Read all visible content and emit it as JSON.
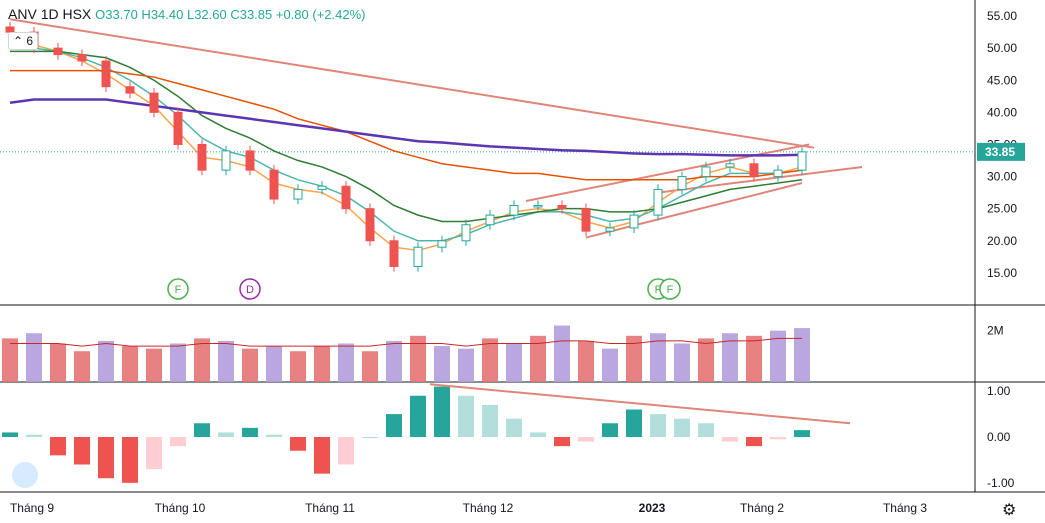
{
  "header": {
    "symbol": "ANV",
    "interval": "1D",
    "exchange": "HSX",
    "ohlc_text": "O33.70 H34.40 L32.60 C33.85 +0.80 (+2.42%)"
  },
  "indicator_toggle": "6",
  "icons": {
    "logo": "tradingview-logo-icon",
    "settings": "gear-icon",
    "collapse": "chevron-up-icon"
  },
  "colors": {
    "up": "#26a69a",
    "down": "#ef5350",
    "ma_fast": "#f6a54b",
    "ma_mid": "#4db6ac",
    "ma_slow": "#2e7d32",
    "ma_orange": "#e65100",
    "ma_long": "#5e35b1",
    "trendline": "#e0857a",
    "vol_up": "#b39ddb",
    "vol_down": "#e57373",
    "vol_ma": "#c62828",
    "macd_pos": "#26a69a",
    "macd_pos_light": "#b2dfdb",
    "macd_neg": "#ef5350",
    "macd_neg_light": "#ffcdd2",
    "price_label": "#26a69a"
  },
  "chart_data": [
    {
      "type": "candlestick",
      "title": "",
      "x_labels": [
        "Tháng 9",
        "Tháng 10",
        "Tháng 11",
        "Tháng 12",
        "2023",
        "Tháng 2",
        "Tháng 3"
      ],
      "y_ticks": [
        "55.00",
        "50.00",
        "45.00",
        "40.00",
        "35.00",
        "30.00",
        "25.00",
        "20.00",
        "15.00"
      ],
      "ylim": [
        10,
        57.5
      ],
      "last_price": "33.85",
      "weekly_closes": [
        52.5,
        50,
        49,
        48,
        44,
        43,
        40,
        35,
        31,
        34,
        31,
        26.5,
        28,
        28.5,
        25,
        20,
        16,
        19,
        20,
        22.5,
        24,
        25.5,
        25.5,
        25,
        21.5,
        22,
        24,
        28,
        30,
        31.5,
        32,
        30,
        31,
        33.85
      ],
      "events": [
        {
          "label": "F",
          "index": 7
        },
        {
          "label": "D",
          "index": 10
        },
        {
          "label": "F",
          "index": 27
        },
        {
          "label": "F",
          "index": 28
        }
      ],
      "series": [
        {
          "name": "MA fast",
          "values": [
            52,
            50.5,
            49.5,
            48,
            46,
            43.5,
            41,
            37,
            33,
            32.5,
            31.5,
            29,
            28,
            27.5,
            25.5,
            22,
            19,
            18.5,
            19.5,
            21.5,
            23,
            24.5,
            25,
            24.5,
            23,
            22,
            23,
            26,
            28.5,
            30.5,
            31.5,
            30.5,
            30.5,
            31.5
          ]
        },
        {
          "name": "MA mid",
          "values": [
            51,
            50,
            49.5,
            48.5,
            47,
            45,
            42.5,
            39.5,
            36,
            34,
            33,
            31,
            29.5,
            28.5,
            27,
            24.5,
            21.5,
            20,
            20,
            21,
            22.5,
            23.5,
            24.5,
            24.5,
            24,
            23,
            23.5,
            25,
            27,
            29,
            30.5,
            30.5,
            30.5,
            31
          ]
        },
        {
          "name": "MA slow",
          "values": [
            49.5,
            49.5,
            49.5,
            49,
            48.5,
            47,
            45,
            42.5,
            39.5,
            37.5,
            36,
            34,
            32.5,
            31.5,
            30,
            28,
            25.5,
            24,
            23,
            23,
            23.5,
            24,
            24.5,
            25,
            25,
            24.5,
            24.5,
            25,
            26,
            27,
            28,
            28.5,
            29,
            29.5
          ]
        },
        {
          "name": "MA orange",
          "values": [
            46.5,
            46.5,
            46.5,
            46.5,
            46.5,
            46,
            45.5,
            44.5,
            43.5,
            42.5,
            41.5,
            40.5,
            39,
            38,
            37,
            35.5,
            34,
            33,
            32,
            31.5,
            31,
            30.5,
            30.5,
            30,
            29.5,
            29.5,
            29.5,
            29.5,
            29.5,
            30,
            30,
            30,
            30.5,
            31
          ]
        },
        {
          "name": "MA long",
          "values": [
            41.5,
            42,
            42,
            42,
            42,
            41.5,
            41,
            40.5,
            40,
            39.5,
            39,
            38.5,
            38,
            37.5,
            37,
            36.5,
            36,
            35.5,
            35.3,
            35,
            34.7,
            34.5,
            34.3,
            34.1,
            34,
            33.8,
            33.6,
            33.5,
            33.5,
            33.4,
            33.3,
            33.3,
            33.3,
            33.4
          ]
        }
      ],
      "trendlines": [
        {
          "x": [
            0,
            33.5
          ],
          "y": [
            54.5,
            34.5
          ]
        },
        {
          "x": [
            21.5,
            33.3
          ],
          "y": [
            26.2,
            35
          ]
        },
        {
          "x": [
            24,
            33
          ],
          "y": [
            20.5,
            29
          ]
        },
        {
          "x": [
            27,
            35.5
          ],
          "y": [
            27.5,
            31.5
          ]
        }
      ]
    },
    {
      "type": "bar",
      "title": "",
      "y_ticks": [
        "2M"
      ],
      "ylim": [
        0,
        3
      ],
      "values": [
        1.7,
        1.9,
        1.5,
        1.2,
        1.6,
        1.4,
        1.3,
        1.5,
        1.7,
        1.6,
        1.3,
        1.4,
        1.2,
        1.4,
        1.5,
        1.2,
        1.6,
        1.8,
        1.4,
        1.3,
        1.7,
        1.5,
        1.8,
        2.2,
        1.6,
        1.3,
        1.8,
        1.9,
        1.5,
        1.7,
        1.9,
        1.8,
        2.0,
        2.1
      ],
      "up": [
        false,
        true,
        false,
        false,
        true,
        false,
        false,
        true,
        false,
        true,
        false,
        true,
        false,
        false,
        true,
        false,
        true,
        false,
        true,
        true,
        false,
        true,
        false,
        true,
        false,
        true,
        false,
        true,
        true,
        false,
        true,
        false,
        true,
        true
      ],
      "ma": [
        1.5,
        1.5,
        1.5,
        1.4,
        1.5,
        1.4,
        1.4,
        1.4,
        1.5,
        1.5,
        1.4,
        1.4,
        1.4,
        1.4,
        1.4,
        1.4,
        1.5,
        1.5,
        1.5,
        1.4,
        1.5,
        1.5,
        1.5,
        1.6,
        1.6,
        1.5,
        1.5,
        1.6,
        1.6,
        1.5,
        1.6,
        1.6,
        1.7,
        1.7
      ]
    },
    {
      "type": "bar",
      "title": "",
      "y_ticks": [
        "1.00",
        "0.00",
        "-1.00"
      ],
      "ylim": [
        -1.2,
        1.2
      ],
      "values": [
        0.1,
        0.05,
        -0.4,
        -0.6,
        -0.9,
        -1.0,
        -0.7,
        -0.2,
        0.3,
        0.1,
        0.2,
        0.05,
        -0.3,
        -0.8,
        -0.6,
        0.0,
        0.5,
        0.9,
        1.1,
        0.9,
        0.7,
        0.4,
        0.1,
        -0.2,
        -0.1,
        0.3,
        0.6,
        0.5,
        0.4,
        0.3,
        -0.1,
        -0.2,
        -0.05,
        0.15
      ],
      "trendline": {
        "x": [
          17.5,
          35
        ],
        "y": [
          1.15,
          0.3
        ]
      }
    }
  ]
}
